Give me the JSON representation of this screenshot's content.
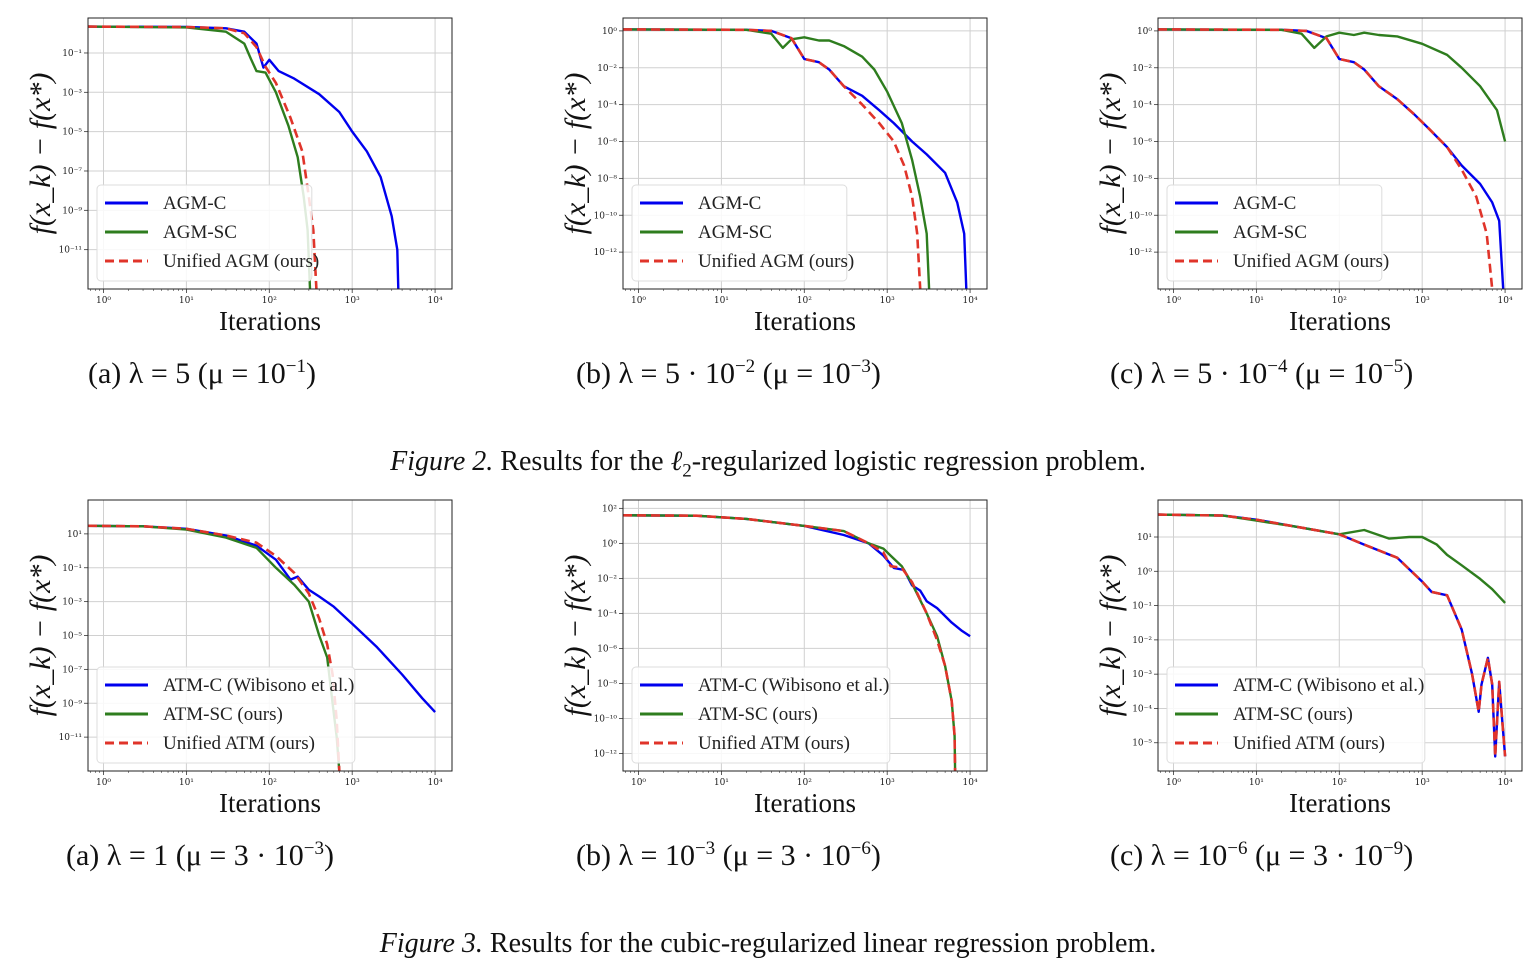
{
  "figures": [
    {
      "label": "Figure 2.",
      "text_before": " Results for the ",
      "ell": "ℓ",
      "ell_sub": "2",
      "text_after": "-regularized logistic regression problem.",
      "subcaptions": [
        {
          "tag": "(a)",
          "lambda": "λ = 5",
          "mu_pre": "(μ = 10",
          "mu_exp": "−1",
          "mu_post": ")"
        },
        {
          "tag": "(b)",
          "lambda": "λ = 5 · 10",
          "lambda_exp": "−2",
          "mu_pre": "(μ = 10",
          "mu_exp": "−3",
          "mu_post": ")"
        },
        {
          "tag": "(c)",
          "lambda": "λ = 5 · 10",
          "lambda_exp": "−4",
          "mu_pre": "(μ = 10",
          "mu_exp": "−5",
          "mu_post": ")"
        }
      ]
    },
    {
      "label": "Figure 3.",
      "text_before": " Results for the cubic-regularized linear regression problem.",
      "subcaptions": [
        {
          "tag": "(a)",
          "lambda": "λ = 1",
          "mu_pre": "(μ = 3 · 10",
          "mu_exp": "−3",
          "mu_post": ")"
        },
        {
          "tag": "(b)",
          "lambda": "λ = 10",
          "lambda_exp": "−3",
          "mu_pre": "(μ = 3 · 10",
          "mu_exp": "−6",
          "mu_post": ")"
        },
        {
          "tag": "(c)",
          "lambda": "λ = 10",
          "lambda_exp": "−6",
          "mu_pre": "(μ = 3 · 10",
          "mu_exp": "−9",
          "mu_post": ")"
        }
      ]
    }
  ],
  "colors": {
    "blue": "#0000ee",
    "green": "#2e7d1e",
    "red": "#e0342a",
    "grid": "#d0d0d0"
  },
  "chart_data": [
    {
      "type": "line",
      "id": "fig2a",
      "xlabel": "Iterations",
      "ylabel": "f(x_k) − f(x*)",
      "xscale": "log",
      "yscale": "log",
      "xlim": [
        0.65,
        16000
      ],
      "ylim": [
        1e-13,
        6
      ],
      "xticks": [
        1,
        10,
        100,
        1000,
        10000
      ],
      "xtick_labels": [
        "10⁰",
        "10¹",
        "10²",
        "10³",
        "10⁴"
      ],
      "yticks": [
        0.1,
        0.001,
        1e-05,
        1e-07,
        1e-09,
        1e-11
      ],
      "ytick_labels": [
        "10⁻¹",
        "10⁻³",
        "10⁻⁵",
        "10⁻⁷",
        "10⁻⁹",
        "10⁻¹¹"
      ],
      "grid": true,
      "legend_position": "lower-left",
      "series": [
        {
          "name": "AGM-C",
          "color": "blue",
          "style": "solid",
          "x": [
            0.65,
            10,
            30,
            50,
            70,
            85,
            100,
            130,
            200,
            400,
            700,
            1000,
            1500,
            2200,
            3000,
            3500,
            3600
          ],
          "y": [
            2.2,
            2.1,
            1.8,
            1.2,
            0.3,
            0.018,
            0.045,
            0.012,
            0.005,
            0.0008,
            0.0001,
            1e-05,
            1e-06,
            5e-08,
            5e-10,
            1e-11,
            1e-13
          ]
        },
        {
          "name": "AGM-SC",
          "color": "green",
          "style": "solid",
          "x": [
            0.65,
            10,
            30,
            50,
            60,
            70,
            90,
            120,
            170,
            220,
            260,
            290,
            310
          ],
          "y": [
            2.2,
            2.0,
            1.2,
            0.3,
            0.05,
            0.012,
            0.01,
            0.001,
            2e-05,
            5e-07,
            5e-09,
            1e-10,
            1e-13
          ]
        },
        {
          "name": "Unified AGM (ours)",
          "color": "red",
          "style": "dashed",
          "x": [
            0.65,
            10,
            30,
            50,
            70,
            90,
            120,
            180,
            250,
            300,
            340,
            370
          ],
          "y": [
            2.2,
            2.1,
            1.8,
            1.0,
            0.2,
            0.02,
            0.003,
            5e-05,
            1e-06,
            5e-09,
            1e-10,
            1e-13
          ]
        }
      ]
    },
    {
      "type": "line",
      "id": "fig2b",
      "xlabel": "Iterations",
      "ylabel": "f(x_k) − f(x*)",
      "xscale": "log",
      "yscale": "log",
      "xlim": [
        0.65,
        16000
      ],
      "ylim": [
        1e-14,
        5
      ],
      "xticks": [
        1,
        10,
        100,
        1000,
        10000
      ],
      "xtick_labels": [
        "10⁰",
        "10¹",
        "10²",
        "10³",
        "10⁴"
      ],
      "yticks": [
        1,
        0.01,
        0.0001,
        1e-06,
        1e-08,
        1e-10,
        1e-12
      ],
      "ytick_labels": [
        "10⁰",
        "10⁻²",
        "10⁻⁴",
        "10⁻⁶",
        "10⁻⁸",
        "10⁻¹⁰",
        "10⁻¹²"
      ],
      "grid": true,
      "legend_position": "lower-left",
      "series": [
        {
          "name": "AGM-C",
          "color": "blue",
          "style": "solid",
          "x": [
            0.65,
            20,
            40,
            70,
            100,
            150,
            200,
            300,
            500,
            800,
            1200,
            2000,
            3000,
            5000,
            7000,
            8500,
            9000
          ],
          "y": [
            1.2,
            1.15,
            1.0,
            0.4,
            0.03,
            0.02,
            0.008,
            0.001,
            0.0003,
            5e-05,
            1e-05,
            1e-06,
            2e-07,
            2e-08,
            5e-10,
            1e-11,
            1e-14
          ]
        },
        {
          "name": "AGM-SC",
          "color": "green",
          "style": "solid",
          "x": [
            0.65,
            20,
            40,
            55,
            70,
            100,
            150,
            200,
            300,
            500,
            700,
            1000,
            1500,
            2000,
            2500,
            3000,
            3200
          ],
          "y": [
            1.2,
            1.15,
            0.7,
            0.12,
            0.35,
            0.45,
            0.3,
            0.3,
            0.15,
            0.04,
            0.008,
            0.0005,
            1e-05,
            1e-07,
            1e-09,
            1e-11,
            1e-14
          ]
        },
        {
          "name": "Unified AGM (ours)",
          "color": "red",
          "style": "dashed",
          "x": [
            0.65,
            20,
            40,
            70,
            100,
            150,
            200,
            300,
            500,
            800,
            1200,
            1600,
            2000,
            2300,
            2500
          ],
          "y": [
            1.2,
            1.15,
            1.0,
            0.4,
            0.03,
            0.02,
            0.008,
            0.001,
            0.0001,
            1e-05,
            1e-06,
            5e-08,
            1e-09,
            1e-11,
            1e-14
          ]
        }
      ]
    },
    {
      "type": "line",
      "id": "fig2c",
      "xlabel": "Iterations",
      "ylabel": "f(x_k) − f(x*)",
      "xscale": "log",
      "yscale": "log",
      "xlim": [
        0.65,
        16000
      ],
      "ylim": [
        1e-14,
        5
      ],
      "xticks": [
        1,
        10,
        100,
        1000,
        10000
      ],
      "xtick_labels": [
        "10⁰",
        "10¹",
        "10²",
        "10³",
        "10⁴"
      ],
      "yticks": [
        1,
        0.01,
        0.0001,
        1e-06,
        1e-08,
        1e-10,
        1e-12
      ],
      "ytick_labels": [
        "10⁰",
        "10⁻²",
        "10⁻⁴",
        "10⁻⁶",
        "10⁻⁸",
        "10⁻¹⁰",
        "10⁻¹²"
      ],
      "grid": true,
      "legend_position": "lower-left",
      "series": [
        {
          "name": "AGM-C",
          "color": "blue",
          "style": "solid",
          "x": [
            0.65,
            20,
            40,
            70,
            100,
            150,
            200,
            300,
            500,
            800,
            1200,
            2000,
            3000,
            5000,
            7000,
            8500,
            9500
          ],
          "y": [
            1.2,
            1.15,
            1.0,
            0.4,
            0.03,
            0.02,
            0.008,
            0.001,
            0.0002,
            3e-05,
            5e-06,
            5e-07,
            5e-08,
            5e-09,
            5e-10,
            5e-11,
            1e-14
          ]
        },
        {
          "name": "AGM-SC",
          "color": "green",
          "style": "solid",
          "x": [
            0.65,
            20,
            35,
            50,
            70,
            100,
            150,
            200,
            300,
            500,
            1000,
            2000,
            3000,
            5000,
            8000,
            10000
          ],
          "y": [
            1.2,
            1.15,
            0.7,
            0.12,
            0.5,
            0.8,
            0.6,
            0.8,
            0.6,
            0.5,
            0.2,
            0.05,
            0.01,
            0.001,
            5e-05,
            1e-06
          ]
        },
        {
          "name": "Unified AGM (ours)",
          "color": "red",
          "style": "dashed",
          "x": [
            0.65,
            20,
            40,
            70,
            100,
            150,
            200,
            300,
            500,
            800,
            1200,
            2000,
            3000,
            4500,
            6000,
            7000
          ],
          "y": [
            1.2,
            1.15,
            1.0,
            0.4,
            0.03,
            0.02,
            0.008,
            0.001,
            0.0002,
            3e-05,
            5e-06,
            5e-07,
            3e-08,
            1e-09,
            1e-11,
            1e-14
          ]
        }
      ]
    },
    {
      "type": "line",
      "id": "fig3a",
      "xlabel": "Iterations",
      "ylabel": "f(x_k) − f(x*)",
      "xscale": "log",
      "yscale": "log",
      "xlim": [
        0.65,
        16000
      ],
      "ylim": [
        1e-13,
        1000
      ],
      "xticks": [
        1,
        10,
        100,
        1000,
        10000
      ],
      "xtick_labels": [
        "10⁰",
        "10¹",
        "10²",
        "10³",
        "10⁴"
      ],
      "yticks": [
        10,
        0.1,
        0.001,
        1e-05,
        1e-07,
        1e-09,
        1e-11
      ],
      "ytick_labels": [
        "10¹",
        "10⁻¹",
        "10⁻³",
        "10⁻⁵",
        "10⁻⁷",
        "10⁻⁹",
        "10⁻¹¹"
      ],
      "grid": true,
      "legend_position": "lower-left",
      "series": [
        {
          "name": "ATM-C (Wibisono et al.)",
          "color": "blue",
          "style": "solid",
          "x": [
            0.65,
            3,
            10,
            30,
            70,
            120,
            180,
            220,
            300,
            400,
            600,
            1000,
            2000,
            4000,
            7000,
            10000
          ],
          "y": [
            30,
            28,
            20,
            8,
            2,
            0.3,
            0.02,
            0.03,
            0.005,
            0.002,
            0.0005,
            5e-05,
            2e-06,
            5e-08,
            2e-09,
            3e-10
          ]
        },
        {
          "name": "ATM-SC (ours)",
          "color": "green",
          "style": "solid",
          "x": [
            0.65,
            3,
            10,
            30,
            70,
            120,
            200,
            300,
            400,
            500,
            580,
            650,
            700
          ],
          "y": [
            30,
            28,
            18,
            6,
            1.5,
            0.1,
            0.01,
            0.001,
            1e-05,
            5e-07,
            1e-09,
            1e-11,
            1e-13
          ]
        },
        {
          "name": "Unified ATM (ours)",
          "color": "red",
          "style": "dashed",
          "x": [
            0.65,
            3,
            10,
            30,
            70,
            120,
            200,
            300,
            400,
            500,
            580,
            650,
            700
          ],
          "y": [
            30,
            28,
            20,
            8,
            3,
            0.5,
            0.05,
            0.003,
            0.0001,
            3e-06,
            5e-08,
            1e-10,
            1e-13
          ]
        }
      ]
    },
    {
      "type": "line",
      "id": "fig3b",
      "xlabel": "Iterations",
      "ylabel": "f(x_k) − f(x*)",
      "xscale": "log",
      "yscale": "log",
      "xlim": [
        0.65,
        16000
      ],
      "ylim": [
        1e-13,
        300
      ],
      "xticks": [
        1,
        10,
        100,
        1000,
        10000
      ],
      "xtick_labels": [
        "10⁰",
        "10¹",
        "10²",
        "10³",
        "10⁴"
      ],
      "yticks": [
        100,
        1,
        0.01,
        0.0001,
        1e-06,
        1e-08,
        1e-10,
        1e-12
      ],
      "ytick_labels": [
        "10²",
        "10⁰",
        "10⁻²",
        "10⁻⁴",
        "10⁻⁶",
        "10⁻⁸",
        "10⁻¹⁰",
        "10⁻¹²"
      ],
      "grid": true,
      "legend_position": "lower-left",
      "series": [
        {
          "name": "ATM-C (Wibisono et al.)",
          "color": "blue",
          "style": "solid",
          "x": [
            0.65,
            5,
            20,
            100,
            300,
            600,
            900,
            1200,
            1600,
            2000,
            2500,
            3000,
            4000,
            6000,
            8000,
            10000
          ],
          "y": [
            40,
            38,
            25,
            10,
            3,
            1,
            0.2,
            0.04,
            0.03,
            0.004,
            0.002,
            0.0005,
            0.0002,
            3e-05,
            1e-05,
            5e-06
          ]
        },
        {
          "name": "ATM-SC (ours)",
          "color": "green",
          "style": "solid",
          "x": [
            0.65,
            5,
            20,
            100,
            300,
            600,
            900,
            1100,
            1500,
            2000,
            3000,
            4000,
            5000,
            6000,
            6500,
            6600
          ],
          "y": [
            40,
            38,
            25,
            10,
            5,
            1,
            0.5,
            0.2,
            0.05,
            0.005,
            0.0001,
            5e-06,
            1e-07,
            1e-09,
            1e-11,
            1e-13
          ]
        },
        {
          "name": "Unified ATM (ours)",
          "color": "red",
          "style": "dashed",
          "x": [
            0.65,
            5,
            20,
            100,
            300,
            600,
            900,
            1100,
            1500,
            2000,
            3000,
            4000,
            5000,
            6000,
            6500,
            6600
          ],
          "y": [
            40,
            38,
            25,
            10,
            5,
            1,
            0.3,
            0.05,
            0.04,
            0.006,
            0.0001,
            3e-06,
            1e-07,
            1e-09,
            1e-11,
            1e-13
          ]
        }
      ]
    },
    {
      "type": "line",
      "id": "fig3c",
      "xlabel": "Iterations",
      "ylabel": "f(x_k) − f(x*)",
      "xscale": "log",
      "yscale": "log",
      "xlim": [
        0.65,
        16000
      ],
      "ylim": [
        1.5e-06,
        120
      ],
      "xticks": [
        1,
        10,
        100,
        1000,
        10000
      ],
      "xtick_labels": [
        "10⁰",
        "10¹",
        "10²",
        "10³",
        "10⁴"
      ],
      "yticks": [
        10,
        1,
        0.1,
        0.01,
        0.001,
        0.0001,
        1e-05
      ],
      "ytick_labels": [
        "10¹",
        "10⁰",
        "10⁻¹",
        "10⁻²",
        "10⁻³",
        "10⁻⁴",
        "10⁻⁵"
      ],
      "grid": true,
      "legend_position": "lower-left",
      "series": [
        {
          "name": "ATM-C (Wibisono et al.)",
          "color": "blue",
          "style": "solid",
          "x": [
            0.65,
            4,
            10,
            30,
            100,
            200,
            500,
            1000,
            1300,
            2000,
            3000,
            4000,
            4800,
            5200,
            6200,
            7000,
            7600,
            8500,
            9200,
            10000
          ],
          "y": [
            45,
            42,
            32,
            20,
            12,
            6,
            2.5,
            0.5,
            0.25,
            0.2,
            0.02,
            0.001,
            8e-05,
            0.0005,
            0.003,
            0.0005,
            4e-06,
            0.0006,
            5e-05,
            4e-06
          ]
        },
        {
          "name": "ATM-SC (ours)",
          "color": "green",
          "style": "solid",
          "x": [
            0.65,
            4,
            10,
            30,
            100,
            200,
            400,
            700,
            1000,
            1500,
            2000,
            3000,
            5000,
            7000,
            10000
          ],
          "y": [
            45,
            42,
            30,
            20,
            12,
            16,
            9,
            10,
            10,
            6,
            3,
            1.5,
            0.6,
            0.3,
            0.12
          ]
        },
        {
          "name": "Unified ATM (ours)",
          "color": "red",
          "style": "dashed",
          "x": [
            0.65,
            4,
            10,
            30,
            100,
            200,
            500,
            1000,
            1300,
            2000,
            3000,
            4000,
            4800,
            5200,
            6200,
            7000,
            7600,
            8500,
            9200,
            10000
          ],
          "y": [
            45,
            42,
            32,
            20,
            12,
            6,
            2.5,
            0.5,
            0.25,
            0.2,
            0.02,
            0.001,
            8e-05,
            0.0005,
            0.003,
            0.0005,
            4e-06,
            0.0006,
            5e-05,
            4e-06
          ]
        }
      ]
    }
  ]
}
